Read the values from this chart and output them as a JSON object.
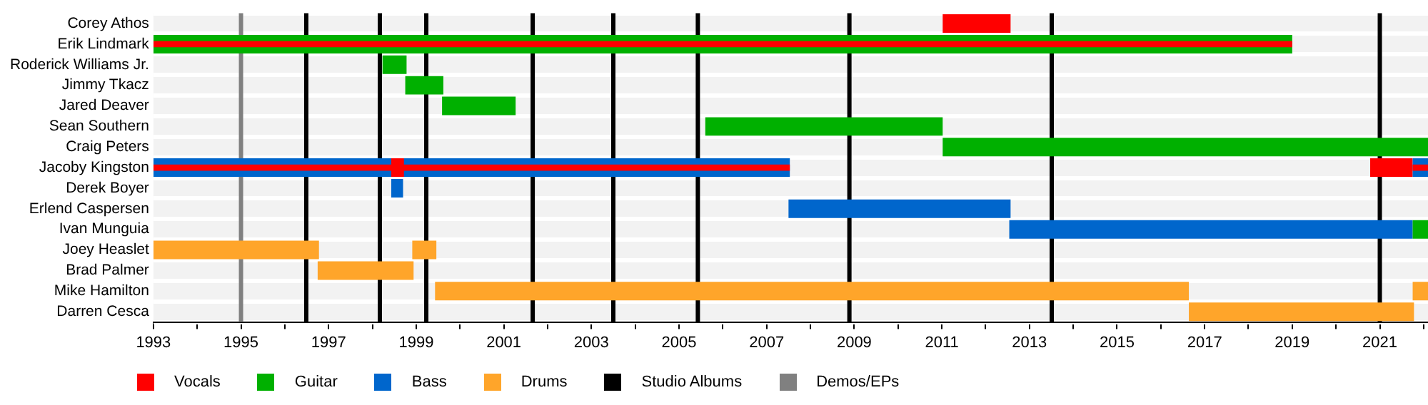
{
  "chart_data": {
    "type": "bar",
    "orientation": "horizontal",
    "categories": [
      "Corey Athos",
      "Erik Lindmark",
      "Roderick Williams Jr.",
      "Jimmy Tkacz",
      "Jared Deaver",
      "Sean Southern",
      "Craig Peters",
      "Jacoby Kingston",
      "Derek Boyer",
      "Erlend Caspersen",
      "Ivan Munguia",
      "Joey Heaslet",
      "Brad Palmer",
      "Mike Hamilton",
      "Darren Cesca"
    ],
    "series": [
      {
        "name": "Vocals",
        "color": "#ff0000",
        "base": [
          2011.02,
          null,
          null,
          null,
          null,
          null,
          null,
          1998.43,
          null,
          null,
          null,
          null,
          null,
          null,
          null
        ],
        "values": [
          1.55,
          null,
          null,
          null,
          null,
          null,
          null,
          0.29,
          null,
          null,
          null,
          null,
          null,
          null,
          null
        ]
      },
      {
        "name": "Guitar",
        "color": "#00b000",
        "base": [
          null,
          1993,
          1998.23,
          1998.75,
          1999.59,
          2005.6,
          2011.02,
          null,
          null,
          null,
          2021.75,
          null,
          null,
          null,
          null
        ],
        "values": [
          null,
          26.0,
          0.55,
          0.87,
          1.68,
          5.42,
          11.08,
          null,
          null,
          null,
          0.35,
          null,
          null,
          null,
          null
        ]
      },
      {
        "name": "Bass",
        "color": "#0066cc",
        "base": [
          null,
          null,
          null,
          null,
          null,
          null,
          null,
          1993,
          1998.43,
          2007.5,
          2012.54,
          null,
          null,
          null,
          null
        ],
        "values": [
          null,
          null,
          null,
          null,
          null,
          null,
          null,
          14.53,
          0.27,
          5.07,
          9.21,
          null,
          null,
          null,
          null
        ]
      },
      {
        "name": "Drums",
        "color": "#ffa52a",
        "base": [
          null,
          null,
          null,
          null,
          null,
          null,
          null,
          null,
          null,
          null,
          null,
          1993,
          1996.75,
          1999.43,
          2016.64
        ],
        "values": [
          null,
          null,
          null,
          null,
          null,
          null,
          null,
          null,
          null,
          null,
          null,
          3.78,
          2.19,
          17.21,
          5.14
        ]
      },
      {
        "color": "#ffa52a",
        "base": [
          null,
          null,
          null,
          null,
          null,
          null,
          null,
          null,
          null,
          null,
          null,
          1998.91,
          null,
          2021.75,
          null
        ],
        "values": [
          null,
          null,
          null,
          null,
          null,
          null,
          null,
          null,
          null,
          null,
          null,
          0.55,
          null,
          0.35,
          null
        ]
      },
      {
        "color": "#0066cc",
        "base": [
          null,
          null,
          null,
          null,
          null,
          null,
          null,
          2021.75,
          null,
          null,
          null,
          null,
          null,
          null,
          null
        ],
        "values": [
          null,
          null,
          null,
          null,
          null,
          null,
          null,
          0.35,
          null,
          null,
          null,
          null,
          null,
          null,
          null
        ]
      },
      {
        "color": "#ff0000",
        "base": [
          null,
          null,
          null,
          null,
          null,
          null,
          null,
          2020.78,
          null,
          null,
          null,
          null,
          null,
          null,
          null
        ],
        "values": [
          null,
          null,
          null,
          null,
          null,
          null,
          null,
          0.97,
          null,
          null,
          null,
          null,
          null,
          null,
          null
        ]
      },
      {
        "color": "#ff0000",
        "base": [
          null,
          1993,
          null,
          null,
          null,
          null,
          null,
          1993,
          null,
          null,
          null,
          null,
          null,
          null,
          null
        ],
        "values": [
          null,
          26.0,
          null,
          null,
          null,
          null,
          null,
          14.53,
          null,
          null,
          null,
          null,
          null,
          null,
          null
        ]
      },
      {
        "color": "#ff0000",
        "base": [
          null,
          null,
          null,
          null,
          null,
          null,
          null,
          2021.75,
          null,
          null,
          null,
          null,
          null,
          null,
          null
        ],
        "values": [
          null,
          null,
          null,
          null,
          null,
          null,
          null,
          0.35,
          null,
          null,
          null,
          null,
          null,
          null,
          null
        ]
      }
    ],
    "xlim": [
      1993,
      2022.1
    ],
    "xticks": [
      1993,
      {
        "value": 1994,
        "label": null
      },
      1995,
      {
        "value": 1996,
        "label": null
      },
      1997,
      {
        "value": 1998,
        "label": null
      },
      1999,
      {
        "value": 2000,
        "label": null
      },
      2001,
      {
        "value": 2002,
        "label": null
      },
      2003,
      {
        "value": 2004,
        "label": null
      },
      2005,
      {
        "value": 2006,
        "label": null
      },
      2007,
      {
        "value": 2008,
        "label": null
      },
      2009,
      {
        "value": 2010,
        "label": null
      },
      2011,
      {
        "value": 2012,
        "label": null
      },
      2013,
      {
        "value": 2014,
        "label": null
      },
      2015,
      {
        "value": 2016,
        "label": null
      },
      2017,
      {
        "value": 2018,
        "label": null
      },
      2019,
      {
        "value": 2020,
        "label": null
      },
      2021,
      {
        "value": 2022,
        "label": null
      }
    ],
    "ref_lines": [
      {
        "axis": "x",
        "value": 1996.49,
        "label": "Studio Albums",
        "color": "#000000"
      },
      {
        "axis": "x",
        "value": 1998.17,
        "color": "#000000"
      },
      {
        "axis": "x",
        "value": 1999.23,
        "color": "#000000"
      },
      {
        "axis": "x",
        "value": 2001.66,
        "color": "#000000"
      },
      {
        "axis": "x",
        "value": 2003.5,
        "color": "#000000"
      },
      {
        "axis": "x",
        "value": 2005.43,
        "color": "#000000"
      },
      {
        "axis": "x",
        "value": 2008.89,
        "color": "#000000"
      },
      {
        "axis": "x",
        "value": 2013.51,
        "color": "#000000"
      },
      {
        "axis": "x",
        "value": 2021.0,
        "color": "#000000"
      },
      {
        "axis": "x",
        "value": 1995.0,
        "label": "Demos/EPs",
        "color": "#808080"
      }
    ],
    "grid": "y",
    "legend": "bottom"
  }
}
